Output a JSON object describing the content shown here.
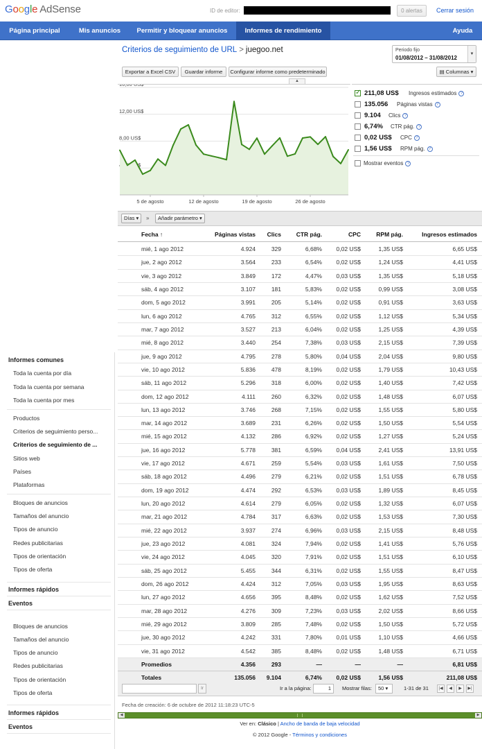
{
  "header": {
    "logo_text_google": [
      "G",
      "o",
      "o",
      "g",
      "l",
      "e"
    ],
    "logo_product": "AdSense",
    "publisher_label": "ID de editor:",
    "alerts_label": "0 alertas",
    "signout_label": "Cerrar sesión"
  },
  "nav": [
    {
      "label": "Página principal",
      "active": false
    },
    {
      "label": "Mis anuncios",
      "active": false
    },
    {
      "label": "Permitir y bloquear anuncios",
      "active": false
    },
    {
      "label": "Informes de rendimiento",
      "active": true
    },
    {
      "label": "Ayuda",
      "active": false
    }
  ],
  "sidebar": {
    "group1_title": "Informes comunes",
    "group1_items": [
      "Toda la cuenta por día",
      "Toda la cuenta por semana",
      "Toda la cuenta por mes"
    ],
    "group2_items": [
      "Productos",
      "Criterios de seguimiento perso...",
      "Criterios de seguimiento de ...",
      "Sitios web",
      "Países",
      "Plataformas"
    ],
    "group3_items": [
      "Bloques de anuncios",
      "Tamaños del anuncio",
      "Tipos de anuncio",
      "Redes publicitarias",
      "Tipos de orientación",
      "Tipos de oferta"
    ],
    "quick_reports": "Informes rápidos",
    "events": "Eventos",
    "dup_items": [
      "Bloques de anuncios",
      "Tamaños del anuncio",
      "Tipos de anuncio",
      "Redes publicitarias",
      "Tipos de orientación",
      "Tipos de oferta"
    ],
    "quick_reports_2": "Informes rápidos",
    "events_2": "Eventos"
  },
  "breadcrumb": {
    "link": "Criterios de seguimiento de URL",
    "sep": ">",
    "current": "juegoo.net"
  },
  "period": {
    "label": "Periodo fijo",
    "value": "01/08/2012 – 31/08/2012"
  },
  "toolbar": {
    "export": "Exportar a Excel CSV",
    "save": "Guardar informe",
    "default": "Configurar informe como predeterminado",
    "columns": "Columnas"
  },
  "metrics": [
    {
      "value": "211,08 US$",
      "name": "Ingresos estimados",
      "checked": true
    },
    {
      "value": "135.056",
      "name": "Páginas vistas",
      "checked": false
    },
    {
      "value": "9.104",
      "name": "Clics",
      "checked": false
    },
    {
      "value": "6,74%",
      "name": "CTR pág.",
      "checked": false
    },
    {
      "value": "0,02 US$",
      "name": "CPC",
      "checked": false
    },
    {
      "value": "1,56 US$",
      "name": "RPM pág.",
      "checked": false
    }
  ],
  "show_events": "Mostrar eventos",
  "dimension_bar": {
    "days": "Días",
    "add_param": "Añadir parámetro"
  },
  "chart_data": {
    "type": "area",
    "title": "",
    "series": [
      {
        "values": [
          6.65,
          4.41,
          5.18,
          3.08,
          3.63,
          5.34,
          4.39,
          7.39,
          9.8,
          10.43,
          7.42,
          6.07,
          5.8,
          5.54,
          5.24,
          13.91,
          7.5,
          6.78,
          8.45,
          6.07,
          7.3,
          8.48,
          5.76,
          6.1,
          8.47,
          8.63,
          7.52,
          8.66,
          5.72,
          4.66,
          6.71
        ]
      }
    ],
    "x": [
      "1",
      "2",
      "3",
      "4",
      "5",
      "6",
      "7",
      "8",
      "9",
      "10",
      "11",
      "12",
      "13",
      "14",
      "15",
      "16",
      "17",
      "18",
      "19",
      "20",
      "21",
      "22",
      "23",
      "24",
      "25",
      "26",
      "27",
      "28",
      "29",
      "30",
      "31"
    ],
    "x_tick_labels": [
      "5 de agosto",
      "12 de agosto",
      "19 de agosto",
      "26 de agosto"
    ],
    "x_tick_days": [
      5,
      12,
      19,
      26
    ],
    "y_tick_labels": [
      "4,00 US$",
      "8,00 US$",
      "12,00 US$",
      "16,00 US$"
    ],
    "y_tick_values": [
      4,
      8,
      12,
      16
    ],
    "ylim": [
      0,
      16
    ],
    "grid": true,
    "colors": {
      "line": "#3a8a1c",
      "fill": "#e7f2df"
    }
  },
  "table": {
    "headers": [
      "Fecha ↑",
      "Páginas vistas",
      "Clics",
      "CTR pág.",
      "CPC",
      "RPM pág.",
      "Ingresos estimados"
    ],
    "rows": [
      [
        "mié, 1 ago 2012",
        "4.924",
        "329",
        "6,68%",
        "0,02 US$",
        "1,35 US$",
        "6,65 US$"
      ],
      [
        "jue, 2 ago 2012",
        "3.564",
        "233",
        "6,54%",
        "0,02 US$",
        "1,24 US$",
        "4,41 US$"
      ],
      [
        "vie, 3 ago 2012",
        "3.849",
        "172",
        "4,47%",
        "0,03 US$",
        "1,35 US$",
        "5,18 US$"
      ],
      [
        "sáb, 4 ago 2012",
        "3.107",
        "181",
        "5,83%",
        "0,02 US$",
        "0,99 US$",
        "3,08 US$"
      ],
      [
        "dom, 5 ago 2012",
        "3.991",
        "205",
        "5,14%",
        "0,02 US$",
        "0,91 US$",
        "3,63 US$"
      ],
      [
        "lun, 6 ago 2012",
        "4.765",
        "312",
        "6,55%",
        "0,02 US$",
        "1,12 US$",
        "5,34 US$"
      ],
      [
        "mar, 7 ago 2012",
        "3.527",
        "213",
        "6,04%",
        "0,02 US$",
        "1,25 US$",
        "4,39 US$"
      ],
      [
        "mié, 8 ago 2012",
        "3.440",
        "254",
        "7,38%",
        "0,03 US$",
        "2,15 US$",
        "7,39 US$"
      ],
      [
        "jue, 9 ago 2012",
        "4.795",
        "278",
        "5,80%",
        "0,04 US$",
        "2,04 US$",
        "9,80 US$"
      ],
      [
        "vie, 10 ago 2012",
        "5.836",
        "478",
        "8,19%",
        "0,02 US$",
        "1,79 US$",
        "10,43 US$"
      ],
      [
        "sáb, 11 ago 2012",
        "5.296",
        "318",
        "6,00%",
        "0,02 US$",
        "1,40 US$",
        "7,42 US$"
      ],
      [
        "dom, 12 ago 2012",
        "4.111",
        "260",
        "6,32%",
        "0,02 US$",
        "1,48 US$",
        "6,07 US$"
      ],
      [
        "lun, 13 ago 2012",
        "3.746",
        "268",
        "7,15%",
        "0,02 US$",
        "1,55 US$",
        "5,80 US$"
      ],
      [
        "mar, 14 ago 2012",
        "3.689",
        "231",
        "6,26%",
        "0,02 US$",
        "1,50 US$",
        "5,54 US$"
      ],
      [
        "mié, 15 ago 2012",
        "4.132",
        "286",
        "6,92%",
        "0,02 US$",
        "1,27 US$",
        "5,24 US$"
      ],
      [
        "jue, 16 ago 2012",
        "5.778",
        "381",
        "6,59%",
        "0,04 US$",
        "2,41 US$",
        "13,91 US$"
      ],
      [
        "vie, 17 ago 2012",
        "4.671",
        "259",
        "5,54%",
        "0,03 US$",
        "1,61 US$",
        "7,50 US$"
      ],
      [
        "sáb, 18 ago 2012",
        "4.496",
        "279",
        "6,21%",
        "0,02 US$",
        "1,51 US$",
        "6,78 US$"
      ],
      [
        "dom, 19 ago 2012",
        "4.474",
        "292",
        "6,53%",
        "0,03 US$",
        "1,89 US$",
        "8,45 US$"
      ],
      [
        "lun, 20 ago 2012",
        "4.614",
        "279",
        "6,05%",
        "0,02 US$",
        "1,32 US$",
        "6,07 US$"
      ],
      [
        "mar, 21 ago 2012",
        "4.784",
        "317",
        "6,63%",
        "0,02 US$",
        "1,53 US$",
        "7,30 US$"
      ],
      [
        "mié, 22 ago 2012",
        "3.937",
        "274",
        "6,96%",
        "0,03 US$",
        "2,15 US$",
        "8,48 US$"
      ],
      [
        "jue, 23 ago 2012",
        "4.081",
        "324",
        "7,94%",
        "0,02 US$",
        "1,41 US$",
        "5,76 US$"
      ],
      [
        "vie, 24 ago 2012",
        "4.045",
        "320",
        "7,91%",
        "0,02 US$",
        "1,51 US$",
        "6,10 US$"
      ],
      [
        "sáb, 25 ago 2012",
        "5.455",
        "344",
        "6,31%",
        "0,02 US$",
        "1,55 US$",
        "8,47 US$"
      ],
      [
        "dom, 26 ago 2012",
        "4.424",
        "312",
        "7,05%",
        "0,03 US$",
        "1,95 US$",
        "8,63 US$"
      ],
      [
        "lun, 27 ago 2012",
        "4.656",
        "395",
        "8,48%",
        "0,02 US$",
        "1,62 US$",
        "7,52 US$"
      ],
      [
        "mar, 28 ago 2012",
        "4.276",
        "309",
        "7,23%",
        "0,03 US$",
        "2,02 US$",
        "8,66 US$"
      ],
      [
        "mié, 29 ago 2012",
        "3.809",
        "285",
        "7,48%",
        "0,02 US$",
        "1,50 US$",
        "5,72 US$"
      ],
      [
        "jue, 30 ago 2012",
        "4.242",
        "331",
        "7,80%",
        "0,01 US$",
        "1,10 US$",
        "4,66 US$"
      ],
      [
        "vie, 31 ago 2012",
        "4.542",
        "385",
        "8,48%",
        "0,02 US$",
        "1,48 US$",
        "6,71 US$"
      ]
    ],
    "averages": [
      "Promedios",
      "4.356",
      "293",
      "—",
      "—",
      "—",
      "6,81 US$"
    ],
    "totals": [
      "Totales",
      "135.056",
      "9.104",
      "6,74%",
      "0,02 US$",
      "1,56 US$",
      "211,08 US$"
    ]
  },
  "pager": {
    "goto_label": "Ir a la página:",
    "goto_value": "1",
    "rows_label": "Mostrar filas:",
    "rows_value": "50",
    "range": "1-31 de 31",
    "filter_btn": "Ir"
  },
  "created": "Fecha de creación: 6 de octubre de 2012 11:18:23 UTC-5",
  "footer": {
    "view_label": "Ver en:",
    "classic": "Clásico",
    "sep": "|",
    "low_bw": "Ancho de banda de baja velocidad",
    "copyright": "© 2012 Google -",
    "terms": "Términos y condiciones"
  }
}
